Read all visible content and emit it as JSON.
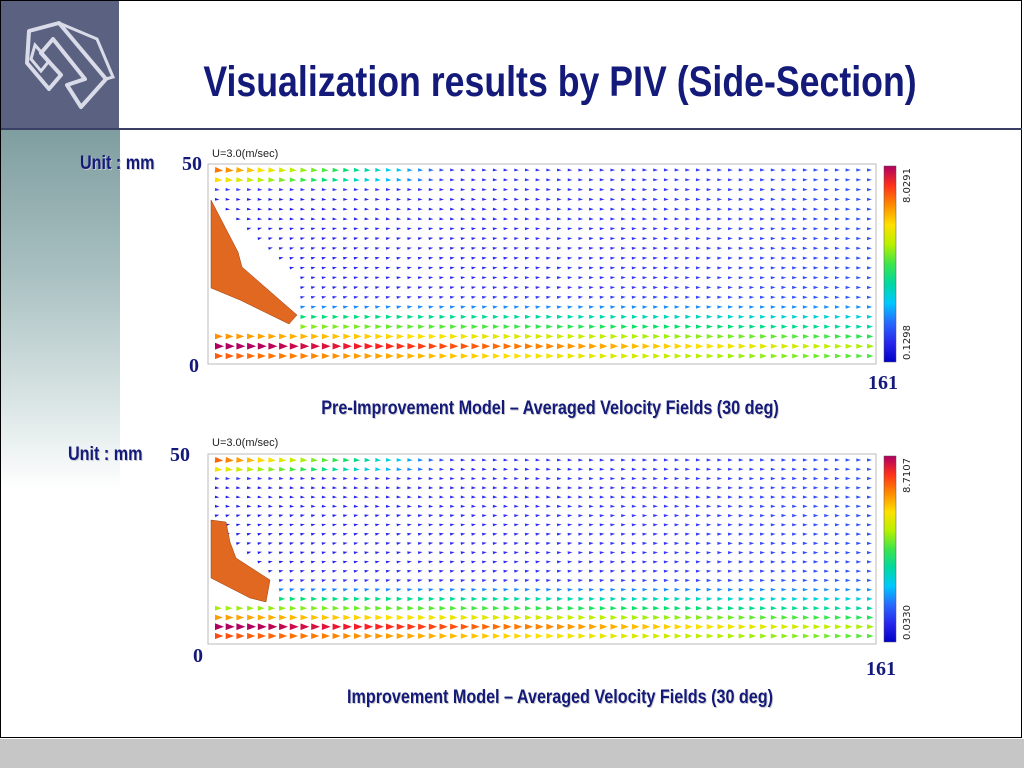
{
  "title": "Visualization results by PIV (Side-Section)",
  "colors": {
    "title": "#141a7a",
    "nozzle": "#e06820",
    "logo_bg": "#5b6180"
  },
  "chart_data": [
    {
      "type": "vector-field",
      "caption": "Pre-Improvement Model – Averaged Velocity Fields (30 deg)",
      "unit_label": "Unit : mm",
      "scale_label": "U=3.0(m/sec)",
      "x_ticks": [
        "161"
      ],
      "y_ticks": [
        "50",
        "0"
      ],
      "xlim": [
        0,
        161
      ],
      "ylim": [
        0,
        50
      ],
      "colorbar": {
        "max": "8.0291",
        "min": "0.1298"
      }
    },
    {
      "type": "vector-field",
      "caption": "Improvement Model – Averaged Velocity Fields (30 deg)",
      "unit_label": "Unit : mm",
      "scale_label": "U=3.0(m/sec)",
      "x_ticks": [
        "161"
      ],
      "y_ticks": [
        "50",
        "0"
      ],
      "xlim": [
        0,
        161
      ],
      "ylim": [
        0,
        50
      ],
      "colorbar": {
        "max": "8.7107",
        "min": "0.0330"
      }
    }
  ]
}
